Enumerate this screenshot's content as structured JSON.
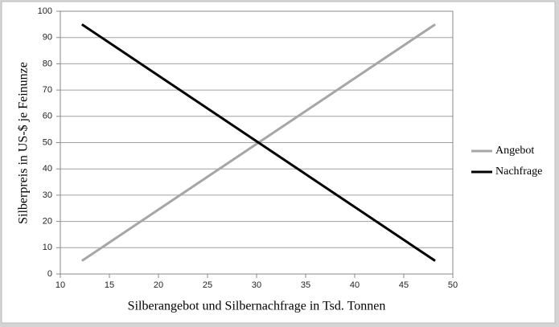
{
  "chart_data": {
    "type": "line",
    "x_label": "Silberangebot und Silbernachfrage  in Tsd. Tonnen",
    "y_label": "Silberpreis in US-$ je Feinunze",
    "x": [
      12.2,
      30.2,
      48.2
    ],
    "series": [
      {
        "name": "Angebot",
        "color": "#a6a6a6",
        "values": [
          5,
          50,
          95
        ]
      },
      {
        "name": "Nachfrage",
        "color": "#000000",
        "values": [
          95,
          50,
          5
        ]
      }
    ],
    "xlim": [
      10,
      50
    ],
    "xticks": [
      10,
      15,
      20,
      25,
      30,
      35,
      40,
      45,
      50
    ],
    "ylim": [
      0,
      100
    ],
    "yticks": [
      0,
      10,
      20,
      30,
      40,
      50,
      60,
      70,
      80,
      90,
      100
    ],
    "grid": true,
    "legend": "right"
  }
}
